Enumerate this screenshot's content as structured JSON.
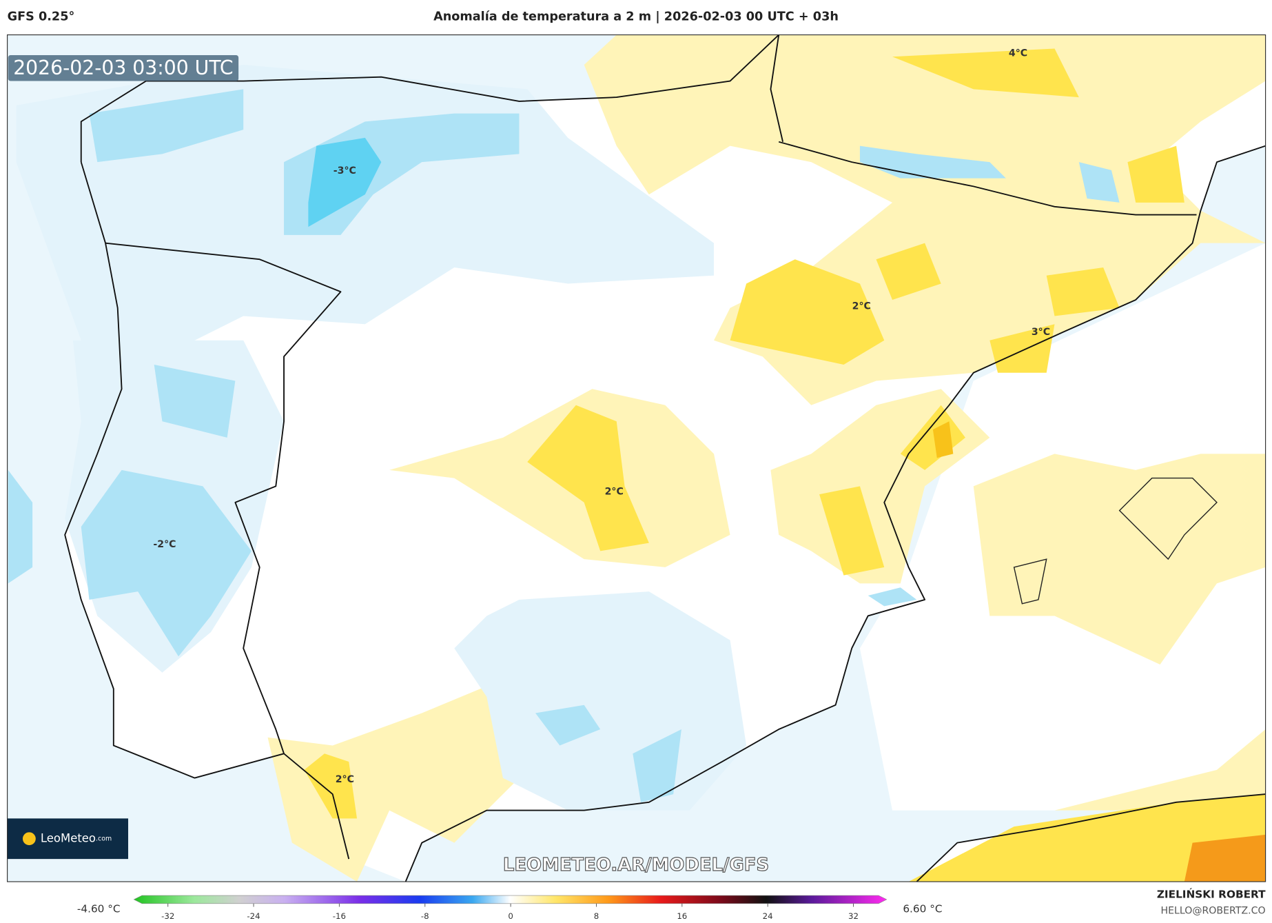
{
  "header": {
    "model": "GFS 0.25°",
    "title": "Anomalía de temperatura a 2 m | 2026-02-03 00 UTC + 03h"
  },
  "map": {
    "timestamp": "2026-02-03 03:00 UTC",
    "contour_labels": [
      "-3°C",
      "4°C",
      "2°C",
      "3°C",
      "2°C",
      "-2°C",
      "2°C"
    ],
    "watermark": "LEOMETEO.AR/MODEL/GFS"
  },
  "logo": {
    "name": "LeoMeteo",
    "suffix": ".com"
  },
  "colorbar": {
    "min_label": "-4.60 °C",
    "max_label": "6.60 °C",
    "lim": [
      -32,
      32
    ],
    "ticks": [
      -32,
      -24,
      -16,
      -8,
      0,
      8,
      16,
      24,
      32
    ]
  },
  "credits": {
    "author": "ZIELIŃSKI ROBERT",
    "email": "HELLO@ROBERTZ.CO"
  }
}
